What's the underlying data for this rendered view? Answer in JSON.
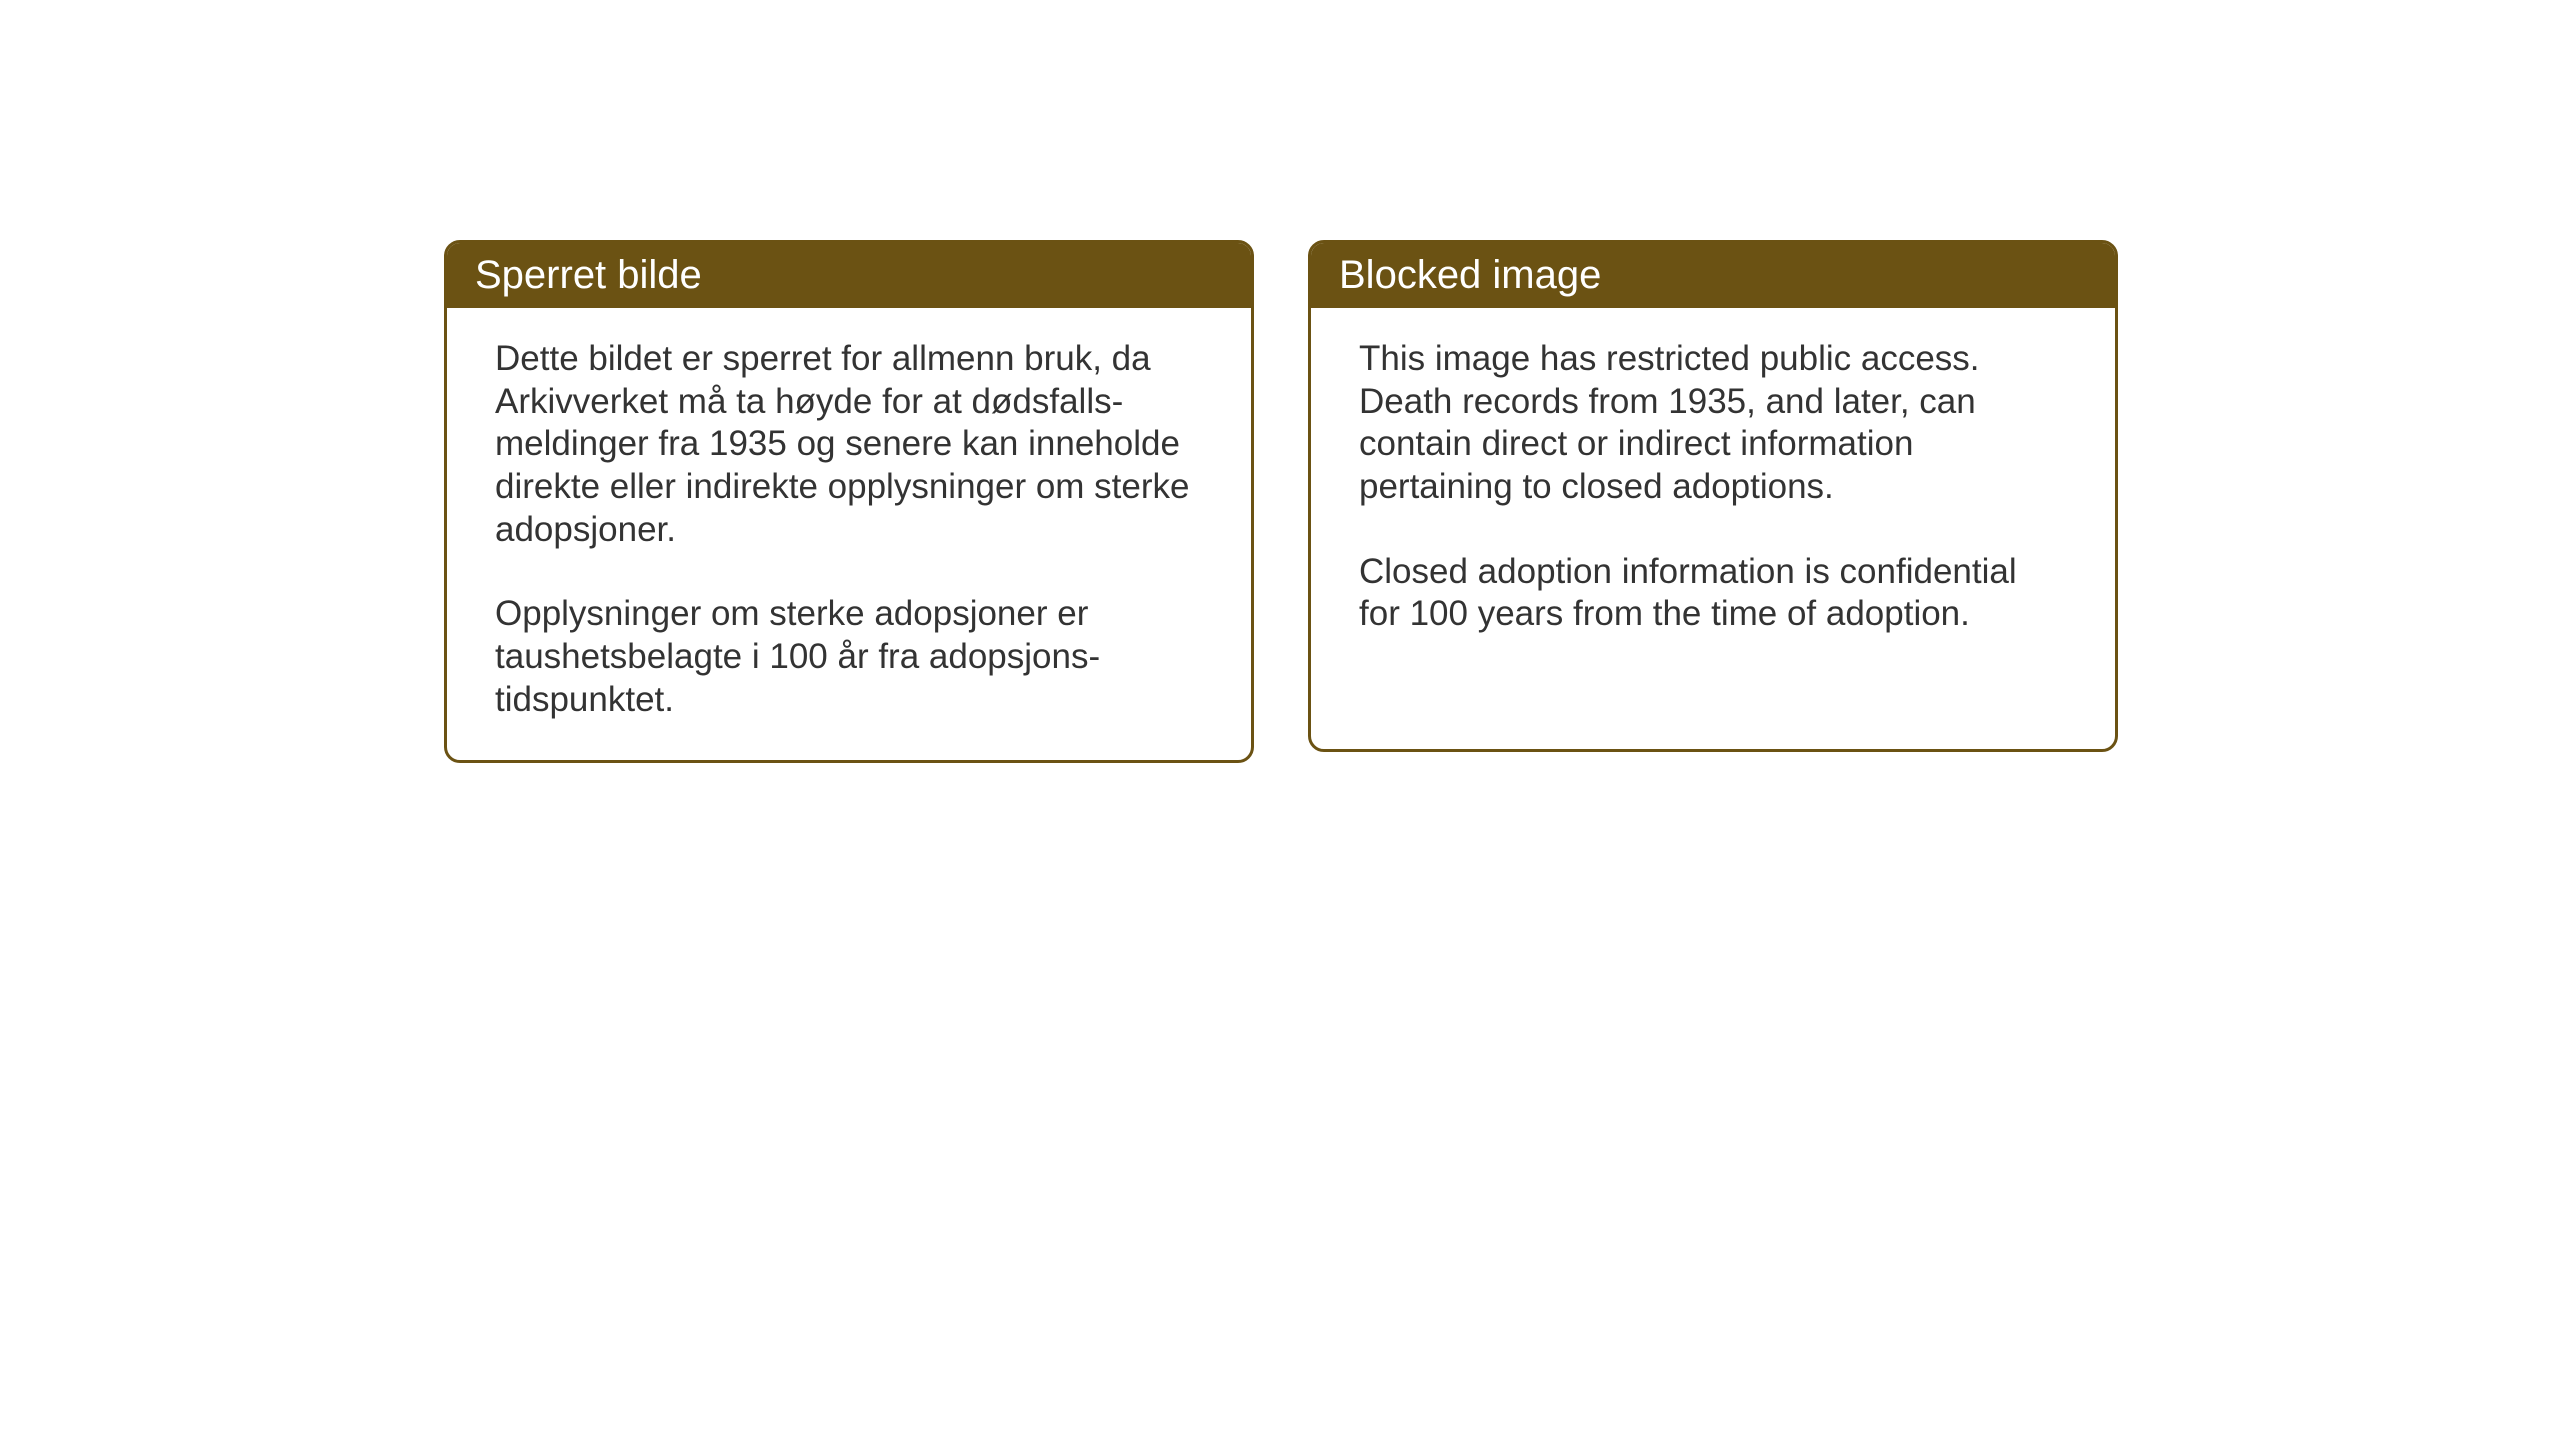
{
  "cards": {
    "norwegian": {
      "title": "Sperret bilde",
      "paragraph1": "Dette bildet er sperret for allmenn bruk, da Arkivverket må ta høyde for at dødsfalls-meldinger fra 1935 og senere kan inneholde direkte eller indirekte opplysninger om sterke adopsjoner.",
      "paragraph2": "Opplysninger om sterke adopsjoner er taushetsbelagte i 100 år fra adopsjons-tidspunktet."
    },
    "english": {
      "title": "Blocked image",
      "paragraph1": "This image has restricted public access. Death records from 1935, and later, can contain direct or indirect information pertaining to closed adoptions.",
      "paragraph2": "Closed adoption information is confidential for 100 years from the time of adoption."
    }
  },
  "styling": {
    "header_background": "#6b5213",
    "header_text_color": "#ffffff",
    "border_color": "#6b5213",
    "body_text_color": "#333333",
    "page_background": "#ffffff",
    "title_fontsize": 40,
    "body_fontsize": 35,
    "border_radius": 16,
    "border_width": 3
  }
}
